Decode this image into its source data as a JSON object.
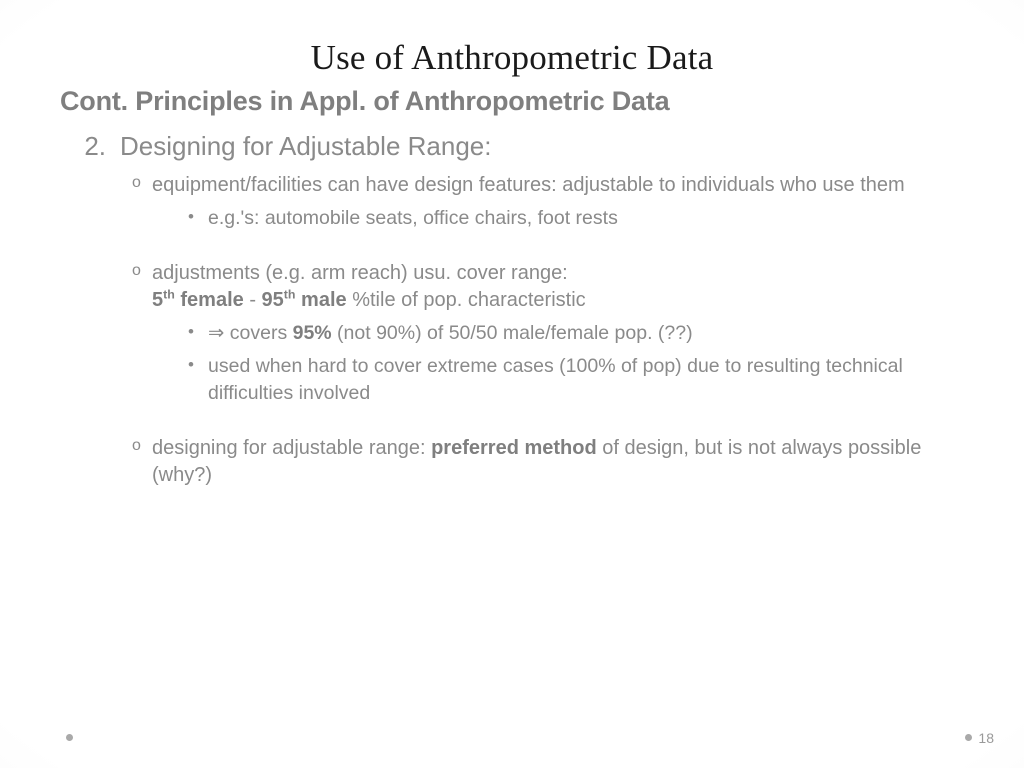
{
  "title": "Use of Anthropometric Data",
  "subtitle": "Cont. Principles in Appl. of Anthropometric Data",
  "item_number": "2.",
  "item_heading": "Designing for Adjustable Range:",
  "bullet1": "equipment/facilities can have design features: adjustable to individuals who use them",
  "bullet1_sub1": "e.g.'s: automobile seats, office chairs, foot rests",
  "bullet2_line1": "adjustments (e.g. arm reach) usu. cover range:",
  "bullet2_5": "5",
  "bullet2_th1": "th",
  "bullet2_female": " female",
  "bullet2_dash": " - ",
  "bullet2_95": "95",
  "bullet2_th2": "th",
  "bullet2_male": " male",
  "bullet2_tail": " %tile of pop. characteristic",
  "bullet2_sub1_arrow": "⇒ covers ",
  "bullet2_sub1_pct": "95%",
  "bullet2_sub1_tail": " (not 90%) of 50/50 male/female pop. (??)",
  "bullet2_sub2": "used when hard to cover extreme cases (100% of pop) due to resulting technical difficulties involved",
  "bullet3_lead": "designing for adjustable range: ",
  "bullet3_bold": "preferred method",
  "bullet3_tail": " of design, but is not always possible (why?)",
  "page_number": "18"
}
